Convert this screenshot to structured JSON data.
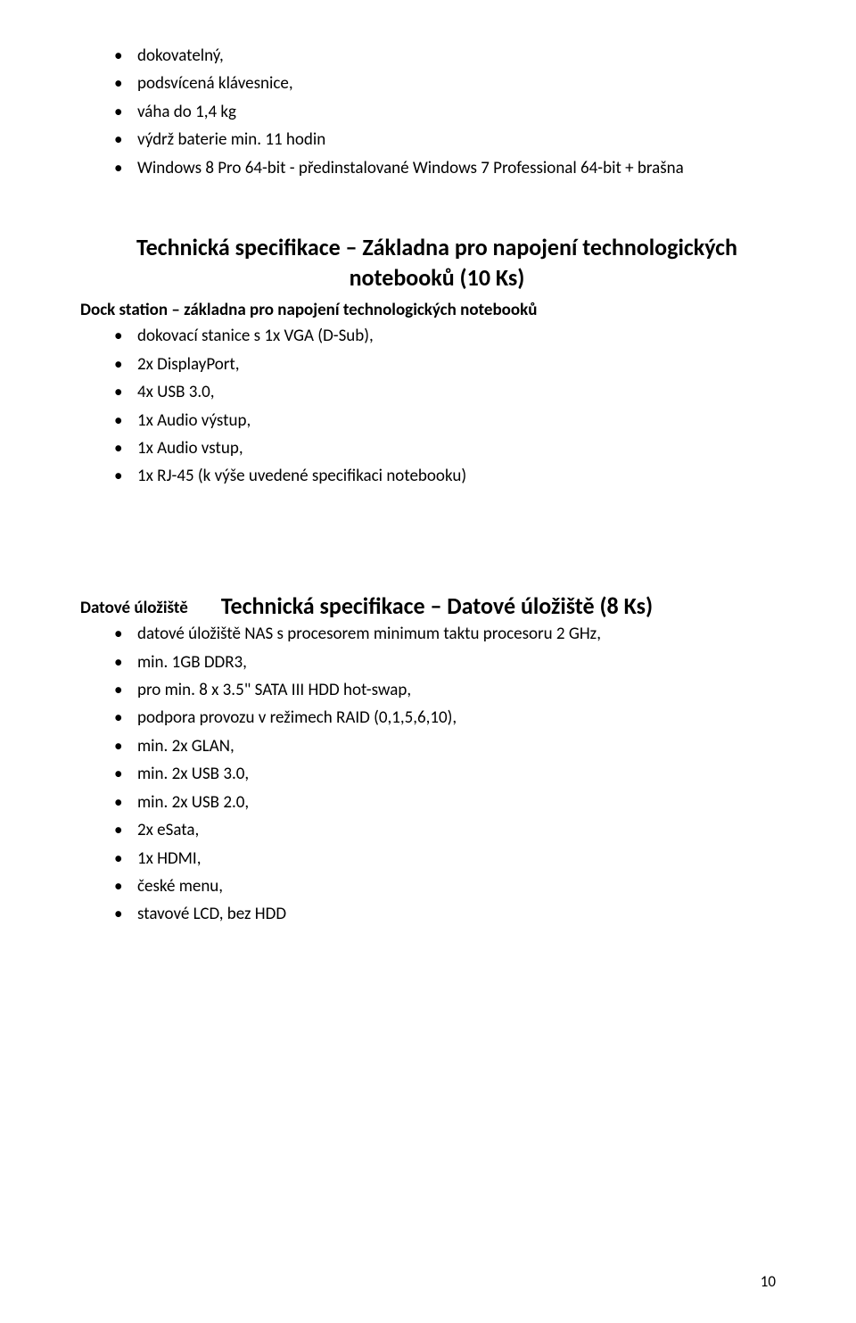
{
  "colors": {
    "text": "#000000",
    "background": "#ffffff"
  },
  "typography": {
    "body_fontsize_pt": 14,
    "heading_fontsize_pt": 20,
    "font_family": "Calibri"
  },
  "top_list": [
    "dokovatelný,",
    "podsvícená klávesnice,",
    "váha do 1,4 kg",
    "výdrž baterie min. 11 hodin",
    "Windows 8 Pro 64-bit - předinstalované Windows 7 Professional 64-bit + brašna"
  ],
  "section1": {
    "title_line1": "Technická specifikace – Základna pro napojení technologických",
    "title_line2": "notebooků (10 Ks)",
    "subheading": "Dock station – základna pro napojení technologických notebooků",
    "items": [
      "dokovací stanice s 1x VGA (D-Sub),",
      "2x DisplayPort,",
      "4x USB 3.0,",
      " 1x Audio výstup,",
      "1x Audio vstup,",
      "1x RJ-45 (k výše uvedené specifikaci notebooku)"
    ]
  },
  "section2": {
    "title": "Technická specifikace – Datové úložiště (8 Ks)",
    "subheading": "Datové úložiště",
    "items": [
      "datové úložiště NAS s procesorem minimum taktu procesoru 2 GHz,",
      " min. 1GB DDR3,",
      "pro min. 8 x 3.5\" SATA III HDD hot-swap,",
      "podpora provozu v režimech RAID (0,1,5,6,10),",
      "min. 2x GLAN,",
      "min. 2x USB 3.0,",
      "min. 2x USB 2.0,",
      "2x eSata,",
      "1x HDMI,",
      "české menu,",
      "stavové LCD, bez HDD"
    ]
  },
  "page_number": "10"
}
